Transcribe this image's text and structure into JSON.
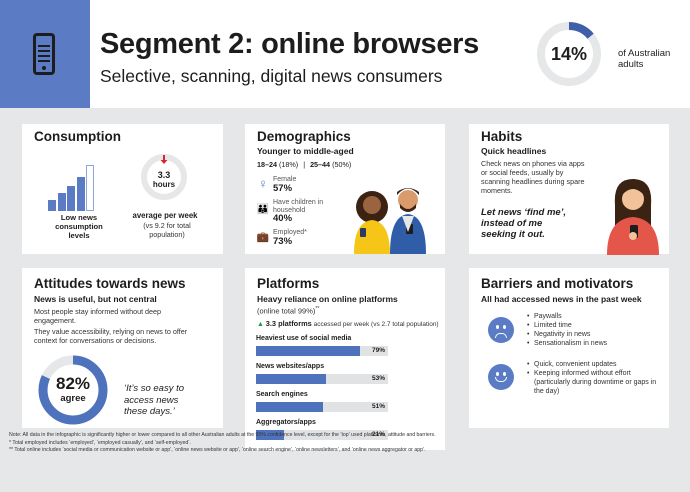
{
  "header": {
    "title": "Segment 2: online browsers",
    "subtitle": "Selective, scanning, digital news consumers",
    "share_value": 14,
    "share_label": "14%",
    "share_note": "of Australian adults"
  },
  "consumption": {
    "title": "Consumption",
    "bar_levels": [
      0.25,
      0.4,
      0.55,
      0.75,
      1.0
    ],
    "left_caption": "Low news consumption levels",
    "hours_value": "3.3",
    "hours_unit": "hours",
    "avg_caption": "average per week",
    "avg_note": "(vs 9.2 for total population)"
  },
  "demographics": {
    "title": "Demographics",
    "subtitle": "Younger to middle-aged",
    "age_a_label": "18–24",
    "age_a_val": "(18%)",
    "age_sep": "|",
    "age_b_label": "25–44",
    "age_b_val": "(50%)",
    "female_label": "Female",
    "female_val": "57%",
    "children_label": "Have children in household",
    "children_val": "40%",
    "employed_label": "Employed",
    "employed_sup": "*",
    "employed_val": "73%"
  },
  "habits": {
    "title": "Habits",
    "subtitle": "Quick headlines",
    "text": "Check news on phones via apps or social feeds, usually by scanning headlines during spare moments.",
    "quote": "Let news ‘find me’, instead of me seeking it out."
  },
  "attitudes": {
    "title": "Attitudes towards news",
    "subtitle": "News is useful, but not central",
    "text1": "Most people stay informed without deep engagement.",
    "text2": "They value accessibility, relying on news to offer context for conversations or decisions.",
    "agree_value": 82,
    "agree_label": "82%",
    "agree_word": "agree",
    "quote": "‘It’s so easy to access news these days.’"
  },
  "platforms": {
    "title": "Platforms",
    "subtitle": "Heavy reliance on online platforms",
    "subtitle2": "(online total 99%)",
    "subtitle2_sup": "**",
    "count_bold": "3.3 platforms",
    "count_rest": "accessed per week (vs 2.7 total population)",
    "items": [
      {
        "label": "Heaviest use of social media",
        "value": 79,
        "pct": "79%"
      },
      {
        "label": "News websites/apps",
        "value": 53,
        "pct": "53%"
      },
      {
        "label": "Search engines",
        "value": 51,
        "pct": "51%"
      },
      {
        "label": "Aggregators/apps",
        "value": 21,
        "pct": "21%"
      }
    ]
  },
  "barriers": {
    "title": "Barriers and motivators",
    "subtitle": "All had accessed news in the past week",
    "barriers": [
      "Paywalls",
      "Limited time",
      "Negativity in news",
      "Sensationalism in news"
    ],
    "motivators": [
      "Quick, convenient updates",
      "Keeping informed without effort (particularly during downtime or gaps in the day)"
    ]
  },
  "footnotes": [
    "Note: All data in the infographic is significantly higher or lower compared to all other Australian adults at the 95% confidence level, except for the ‘top’ used platforms, attitude and barriers.",
    "* Total employed includes ‘employed’, ‘employed casually’, and ‘self-employed’.",
    "** Total online includes ‘social media or communication website or app’, ‘online news website or app’, ‘online search engine’, ‘online newsletters’, and ‘online news aggregator or app’."
  ],
  "colors": {
    "accent": "#5b7cc4",
    "bar": "#4f72bd",
    "arrow": "#d9262b",
    "background": "#e6e7e8"
  }
}
